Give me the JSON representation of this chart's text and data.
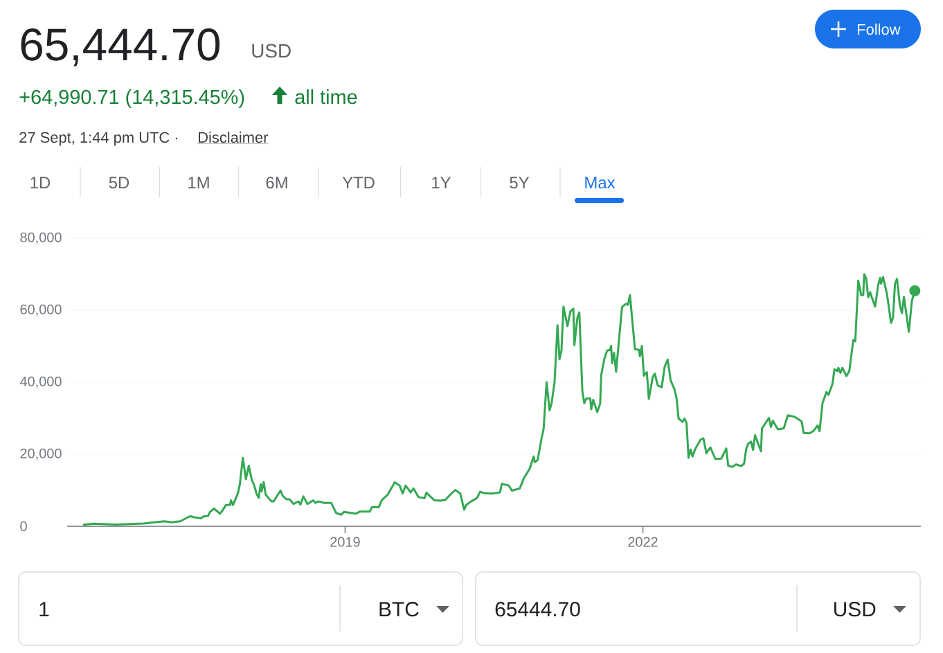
{
  "chart_data": {
    "type": "line",
    "title": "65,444.70",
    "subtitle": "USD",
    "x": [
      2016.36,
      2016.47,
      2016.69,
      2016.97,
      2017.18,
      2017.25,
      2017.34,
      2017.41,
      2017.44,
      2017.48,
      2017.55,
      2017.57,
      2017.62,
      2017.64,
      2017.68,
      2017.74,
      2017.77,
      2017.8,
      2017.84,
      2017.85,
      2017.87,
      2017.92,
      2017.94,
      2017.97,
      2018.0,
      2018.03,
      2018.06,
      2018.08,
      2018.11,
      2018.13,
      2018.15,
      2018.16,
      2018.18,
      2018.2,
      2018.23,
      2018.26,
      2018.28,
      2018.33,
      2018.35,
      2018.37,
      2018.41,
      2018.44,
      2018.48,
      2018.53,
      2018.55,
      2018.58,
      2018.62,
      2018.68,
      2018.7,
      2018.73,
      2018.79,
      2018.86,
      2018.91,
      2018.96,
      2018.99,
      2019.11,
      2019.15,
      2019.25,
      2019.27,
      2019.34,
      2019.37,
      2019.43,
      2019.5,
      2019.55,
      2019.58,
      2019.61,
      2019.66,
      2019.69,
      2019.74,
      2019.8,
      2019.82,
      2019.9,
      2019.96,
      2020.01,
      2020.06,
      2020.11,
      2020.16,
      2020.2,
      2020.22,
      2020.27,
      2020.33,
      2020.36,
      2020.4,
      2020.48,
      2020.56,
      2020.58,
      2020.65,
      2020.68,
      2020.76,
      2020.8,
      2020.86,
      2020.9,
      2020.91,
      2020.94,
      2020.98,
      2021.0,
      2021.03,
      2021.06,
      2021.08,
      2021.11,
      2021.14,
      2021.16,
      2021.18,
      2021.2,
      2021.24,
      2021.27,
      2021.3,
      2021.31,
      2021.34,
      2021.36,
      2021.39,
      2021.41,
      2021.43,
      2021.47,
      2021.48,
      2021.5,
      2021.54,
      2021.57,
      2021.58,
      2021.61,
      2021.64,
      2021.67,
      2021.68,
      2021.69,
      2021.71,
      2021.73,
      2021.79,
      2021.83,
      2021.85,
      2021.87,
      2021.92,
      2021.96,
      2021.97,
      2021.99,
      2022.01,
      2022.04,
      2022.06,
      2022.1,
      2022.12,
      2022.15,
      2022.19,
      2022.22,
      2022.25,
      2022.28,
      2022.32,
      2022.34,
      2022.36,
      2022.4,
      2022.42,
      2022.44,
      2022.46,
      2022.48,
      2022.5,
      2022.53,
      2022.58,
      2022.61,
      2022.64,
      2022.68,
      2022.73,
      2022.79,
      2022.84,
      2022.86,
      2022.9,
      2022.94,
      2022.99,
      2023.02,
      2023.04,
      2023.06,
      2023.09,
      2023.11,
      2023.13,
      2023.19,
      2023.2,
      2023.27,
      2023.29,
      2023.31,
      2023.36,
      2023.42,
      2023.46,
      2023.53,
      2023.6,
      2023.62,
      2023.68,
      2023.72,
      2023.76,
      2023.78,
      2023.81,
      2023.85,
      2023.87,
      2023.91,
      2023.93,
      2023.96,
      2023.97,
      2023.99,
      2024.01,
      2024.05,
      2024.08,
      2024.12,
      2024.14,
      2024.17,
      2024.2,
      2024.22,
      2024.23,
      2024.25,
      2024.27,
      2024.29,
      2024.31,
      2024.34,
      2024.37,
      2024.39,
      2024.4,
      2024.42,
      2024.44,
      2024.46,
      2024.5,
      2024.52,
      2024.54,
      2024.56,
      2024.59,
      2024.61,
      2024.63,
      2024.68,
      2024.71,
      2024.74
    ],
    "series": [
      {
        "color": "#34a853",
        "values": [
          450,
          700,
          500,
          770,
          1400,
          1100,
          1400,
          2400,
          2800,
          2500,
          2200,
          2700,
          2900,
          4000,
          4900,
          3500,
          4600,
          5900,
          5900,
          7200,
          5900,
          9100,
          11700,
          19000,
          13100,
          16800,
          12900,
          11700,
          8900,
          7900,
          11700,
          9700,
          12300,
          8800,
          7800,
          6900,
          6900,
          9100,
          9900,
          8500,
          7500,
          7500,
          6200,
          6900,
          6000,
          8300,
          6200,
          7200,
          6500,
          6900,
          6500,
          6500,
          3700,
          3200,
          4000,
          3500,
          4100,
          4100,
          5300,
          5300,
          7300,
          8800,
          12200,
          11300,
          9100,
          11300,
          9400,
          10500,
          8100,
          7800,
          9300,
          7200,
          7100,
          7300,
          8800,
          10100,
          9100,
          4600,
          5900,
          6900,
          7900,
          9600,
          9200,
          9100,
          9400,
          11800,
          11300,
          9900,
          10500,
          13300,
          16000,
          19400,
          17800,
          18400,
          24500,
          27000,
          40000,
          32200,
          34100,
          39900,
          55800,
          46400,
          48800,
          61000,
          55600,
          59700,
          60400,
          50300,
          57900,
          59400,
          37600,
          34200,
          35500,
          35500,
          32500,
          35100,
          31700,
          34100,
          41900,
          46300,
          48800,
          49000,
          50100,
          45300,
          48200,
          42900,
          60900,
          61800,
          61500,
          64200,
          49200,
          49000,
          47200,
          50100,
          41800,
          42800,
          35400,
          41500,
          42400,
          39100,
          38600,
          44400,
          46300,
          40500,
          37900,
          35400,
          29900,
          29000,
          29900,
          28700,
          19000,
          21300,
          19400,
          21600,
          24000,
          24400,
          20300,
          21900,
          18700,
          18800,
          21600,
          16800,
          16500,
          17200,
          16700,
          17400,
          21300,
          22900,
          23500,
          21200,
          25300,
          20800,
          27200,
          30100,
          27600,
          29300,
          26900,
          27200,
          30800,
          30400,
          29100,
          25900,
          25800,
          26500,
          28000,
          26400,
          34200,
          37300,
          36500,
          39500,
          43600,
          43100,
          44000,
          42600,
          44000,
          41700,
          43100,
          51700,
          51400,
          68200,
          64200,
          64200,
          70000,
          68800,
          63600,
          65000,
          63300,
          61000,
          66900,
          69000,
          67400,
          69200,
          66800,
          64400,
          56500,
          57900,
          67400,
          68700,
          61300,
          59200,
          63700,
          54000,
          62600,
          65400
        ]
      }
    ],
    "xlim": [
      2016.2,
      2024.8
    ],
    "ylim": [
      0,
      80000
    ],
    "xticks": [
      2019,
      2022
    ],
    "yticks": [
      0,
      {
        "value": 20000,
        "label": "20,000"
      },
      {
        "value": 40000,
        "label": "40,000"
      },
      {
        "value": 60000,
        "label": "60,000"
      },
      {
        "value": 80000,
        "label": "80,000"
      }
    ],
    "grid": "y",
    "annotations": [
      "+64,990.71 (14,315.45%)",
      "all time",
      "27 Sept, 1:44 pm UTC ·",
      "Disclaimer",
      "Follow",
      "1D",
      "5D",
      "1M",
      "6M",
      "YTD",
      "1Y",
      "5Y",
      "Max",
      "1",
      "BTC",
      "65444.70",
      "USD"
    ]
  }
}
